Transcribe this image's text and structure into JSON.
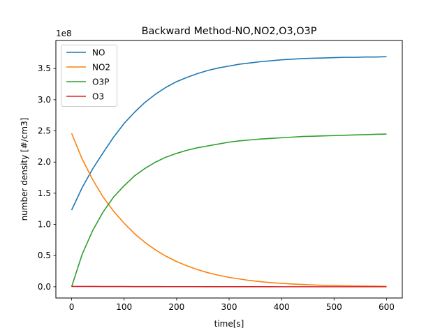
{
  "chart_data": {
    "type": "line",
    "title": "Backward Method-NO,NO2,O3,O3P",
    "xlabel": "time[s]",
    "ylabel": "number density [#/cm3]",
    "y_offset_label": "1e8",
    "xlim": [
      -30,
      630
    ],
    "ylim": [
      -18000000.0,
      395000000.0
    ],
    "xticks": [
      0,
      100,
      200,
      300,
      400,
      500,
      600
    ],
    "xtick_labels": [
      "0",
      "100",
      "200",
      "300",
      "400",
      "500",
      "600"
    ],
    "yticks": [
      0,
      50000000.0,
      100000000.0,
      150000000.0,
      200000000.0,
      250000000.0,
      300000000.0,
      350000000.0
    ],
    "ytick_labels": [
      "0.0",
      "0.5",
      "1.0",
      "1.5",
      "2.0",
      "2.5",
      "3.0",
      "3.5"
    ],
    "grid": false,
    "legend_position": "upper-left",
    "x": [
      0,
      20,
      40,
      60,
      80,
      100,
      120,
      140,
      160,
      180,
      200,
      220,
      240,
      260,
      280,
      300,
      320,
      340,
      360,
      380,
      400,
      420,
      440,
      460,
      480,
      500,
      520,
      540,
      560,
      580,
      600
    ],
    "series": [
      {
        "name": "NO",
        "color": "#1f77b4",
        "values": [
          123000000.0,
          159000000.0,
          189000000.0,
          215000000.0,
          240000000.0,
          262000000.0,
          280000000.0,
          296000000.0,
          309000000.0,
          320000000.0,
          329000000.0,
          336000000.0,
          342000000.0,
          347000000.0,
          351000000.0,
          354000000.0,
          357000000.0,
          359000000.0,
          361000000.0,
          362500000.0,
          364000000.0,
          365000000.0,
          366000000.0,
          366500000.0,
          367000000.0,
          367500000.0,
          368000000.0,
          368000000.0,
          368500000.0,
          368500000.0,
          369000000.0
        ]
      },
      {
        "name": "NO2",
        "color": "#ff7f0e",
        "values": [
          246000000.0,
          205000000.0,
          172000000.0,
          144000000.0,
          121000000.0,
          102000000.0,
          85000000.0,
          71000000.0,
          59000000.0,
          49000000.0,
          40500000.0,
          33500000.0,
          27500000.0,
          22500000.0,
          18500000.0,
          15000000.0,
          12500000.0,
          10000000.0,
          8200000.0,
          6700000.0,
          5500000.0,
          4500000.0,
          3700000.0,
          3000000.0,
          2400000.0,
          2000000.0,
          1600000.0,
          1300000.0,
          1100000.0,
          900000.0,
          700000.0
        ]
      },
      {
        "name": "O3P",
        "color": "#2ca02c",
        "values": [
          0,
          52000000.0,
          90000000.0,
          120000000.0,
          144000000.0,
          162000000.0,
          178000000.0,
          190000000.0,
          200000000.0,
          208000000.0,
          214000000.0,
          219000000.0,
          223000000.0,
          226000000.0,
          229000000.0,
          232000000.0,
          234000000.0,
          235500000.0,
          237000000.0,
          238000000.0,
          239000000.0,
          240000000.0,
          241000000.0,
          241500000.0,
          242000000.0,
          242500000.0,
          243000000.0,
          243500000.0,
          244000000.0,
          244500000.0,
          245000000.0
        ]
      },
      {
        "name": "O3",
        "color": "#d62728",
        "values": [
          500000.0,
          500000.0,
          500000.0,
          400000.0,
          400000.0,
          400000.0,
          300000.0,
          300000.0,
          300000.0,
          200000.0,
          200000.0,
          200000.0,
          200000.0,
          100000.0,
          100000.0,
          100000.0,
          100000.0,
          100000.0,
          100000.0,
          100000.0,
          50000.0,
          50000.0,
          50000.0,
          50000.0,
          50000.0,
          50000.0,
          50000.0,
          50000.0,
          50000.0,
          50000.0,
          50000.0
        ]
      }
    ]
  }
}
